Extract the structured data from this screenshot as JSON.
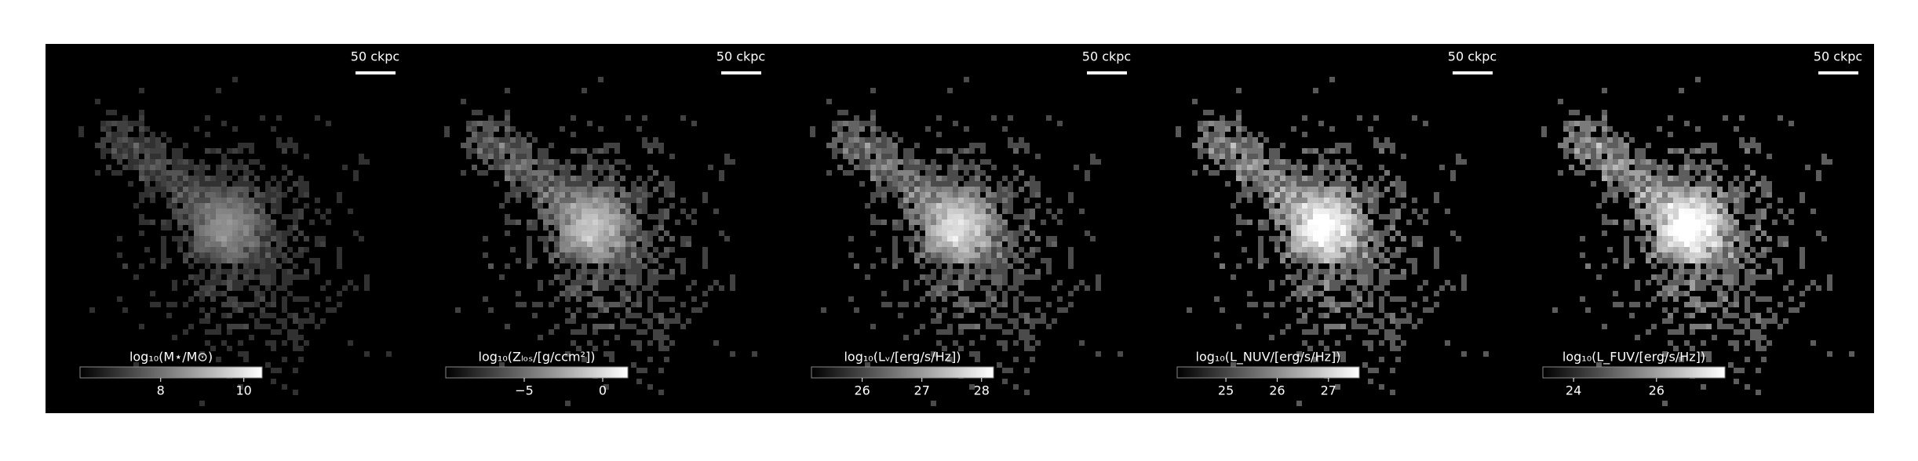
{
  "chart_data": [
    {
      "type": "image",
      "cmap": "gray",
      "colorbar_label": "log₁₀(M⋆/M⊙)",
      "xlim": [
        6.06,
        10.44
      ],
      "xticks": [
        8,
        10
      ],
      "scale_bar_label": "50 ckpc"
    },
    {
      "type": "image",
      "cmap": "gray",
      "colorbar_label": "log₁₀(Zₗₒₛ/[g/ccm²])",
      "xlim": [
        -10,
        1.6
      ],
      "xticks": [
        {
          "value": -5,
          "label": "−5"
        },
        0
      ],
      "scale_bar_label": "50 ckpc"
    },
    {
      "type": "image",
      "cmap": "gray",
      "colorbar_label": "log₁₀(Lᵥ/[erg/s/Hz])",
      "xlim": [
        25.15,
        28.2
      ],
      "xticks": [
        26,
        27,
        28
      ],
      "scale_bar_label": "50 ckpc"
    },
    {
      "type": "image",
      "cmap": "gray",
      "colorbar_label": "log₁₀(L_NUV/[erg/s/Hz])",
      "xlim": [
        24.05,
        27.6
      ],
      "xticks": [
        25,
        26,
        27
      ],
      "scale_bar_label": "50 ckpc"
    },
    {
      "type": "image",
      "cmap": "gray",
      "colorbar_label": "log₁₀(L_FUV/[erg/s/Hz])",
      "xlim": [
        23.26,
        27.65
      ],
      "xticks": [
        24,
        26
      ],
      "scale_bar_label": "50 ckpc"
    }
  ]
}
